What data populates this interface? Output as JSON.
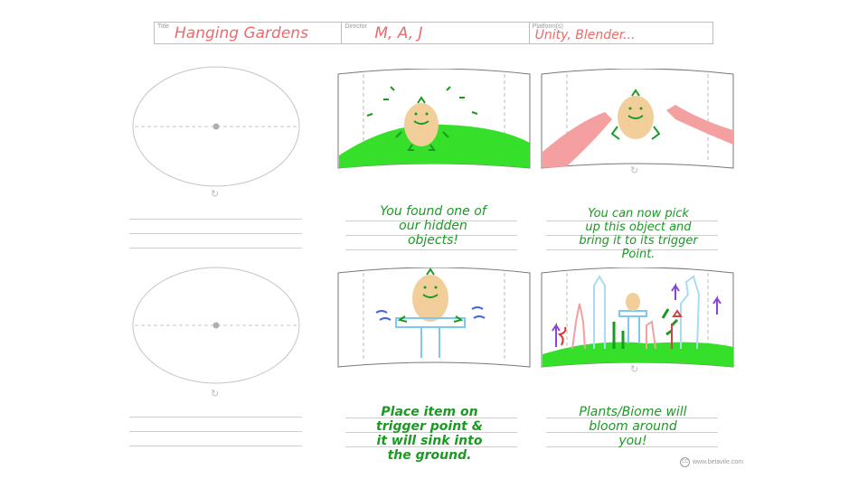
{
  "header": {
    "title_label": "Title",
    "title_value": "Hanging Gardens",
    "director_label": "Director",
    "director_value": "M, A, J",
    "platform_label": "Platform(s)",
    "platform_value": "Unity, Blender..."
  },
  "notes": {
    "panel1": "You found one of\nour  hidden\nobjects!",
    "panel2": "You can now pick\nup this object and\nbring it to its trigger\nPoint.",
    "panel3": "Place item on\ntrigger point &\nit will sink into\nthe ground.",
    "panel4": "Plants/Biome will\nbloom around\nyou!"
  },
  "footer": {
    "credit": "www.betavile.com",
    "cc_icon": "CC"
  },
  "colors": {
    "sketch_green": "#1a9a22",
    "grass_green": "#36e02a",
    "pink": "#f4a0a0",
    "potato": "#f2cf9a"
  }
}
